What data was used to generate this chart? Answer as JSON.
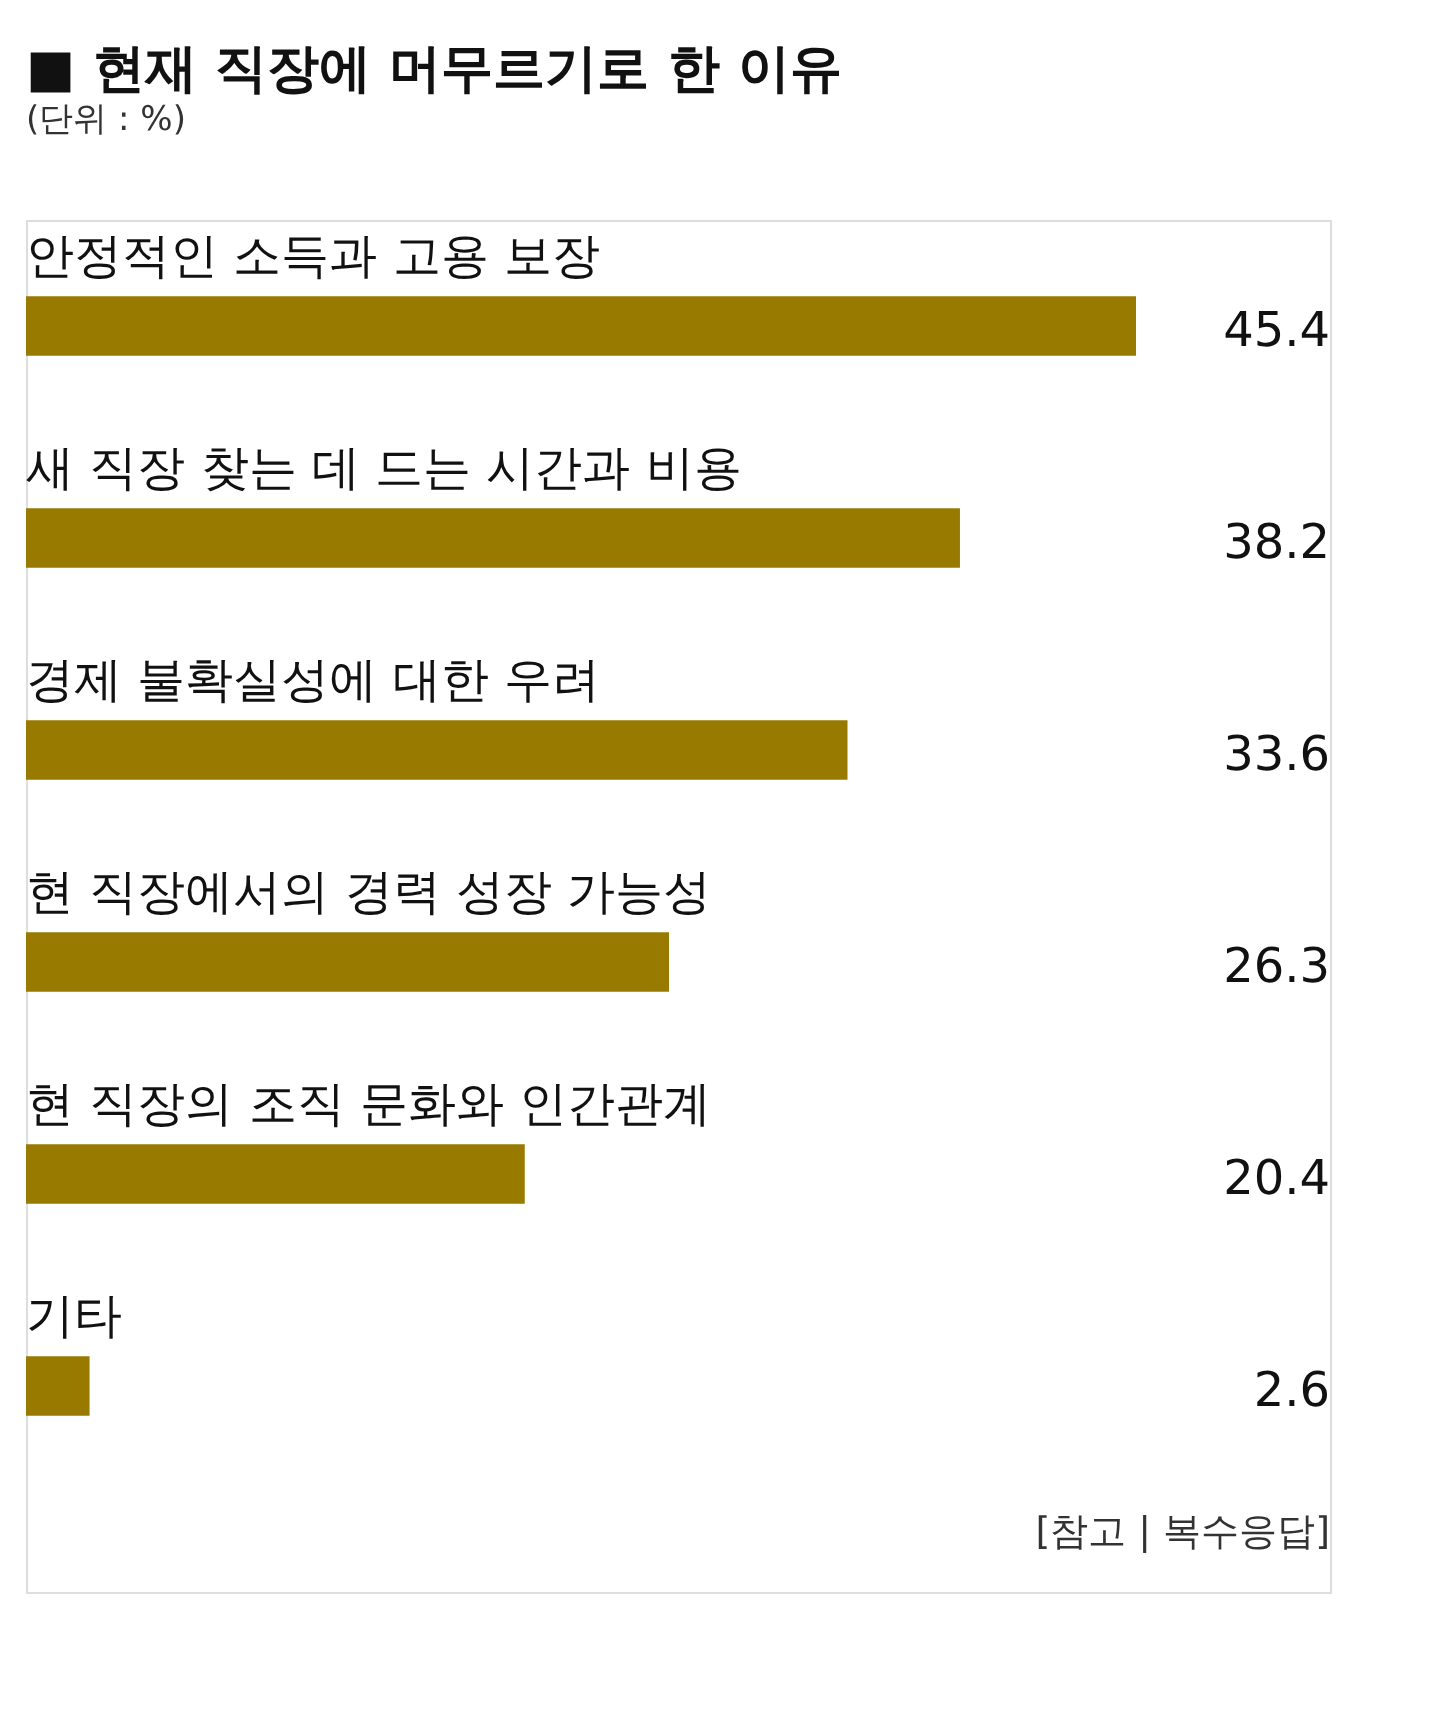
{
  "chart_data": {
    "type": "bar",
    "orientation": "horizontal",
    "title": "■ 현재 직장에 머무르기로 한 이유",
    "subtitle": "(단위 : %)",
    "categories": [
      "안정적인 소득과 고용 보장",
      "새 직장 찾는 데 드는 시간과 비용",
      "경제 불확실성에 대한 우려",
      "현 직장에서의 경력 성장 가능성",
      "현 직장의 조직 문화와 인간관계",
      "기타"
    ],
    "values": [
      45.4,
      38.2,
      33.6,
      26.3,
      20.4,
      2.6
    ],
    "color": "#997a00",
    "data_labels": true,
    "annotations": [
      "[참고 | 복수응답]"
    ]
  }
}
